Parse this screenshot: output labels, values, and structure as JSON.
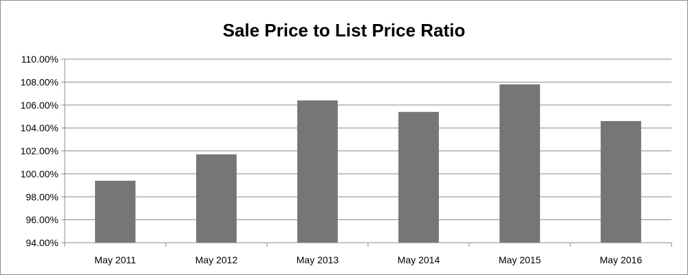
{
  "chart_data": {
    "type": "bar",
    "title": "Sale Price to List Price Ratio",
    "xlabel": "",
    "ylabel": "",
    "categories": [
      "May 2011",
      "May 2012",
      "May 2013",
      "May 2014",
      "May 2015",
      "May 2016"
    ],
    "values": [
      99.4,
      101.7,
      106.4,
      105.4,
      107.8,
      104.6
    ],
    "unit": "%",
    "ylim": [
      94,
      110
    ],
    "ytick_step": 2,
    "ytick_labels": [
      "94.00%",
      "96.00%",
      "98.00%",
      "100.00%",
      "102.00%",
      "104.00%",
      "106.00%",
      "108.00%",
      "110.00%"
    ],
    "grid": true,
    "legend": "none",
    "colors": {
      "bar": "#767676",
      "grid": "#8a8a8a",
      "axis": "#8a8a8a"
    }
  }
}
